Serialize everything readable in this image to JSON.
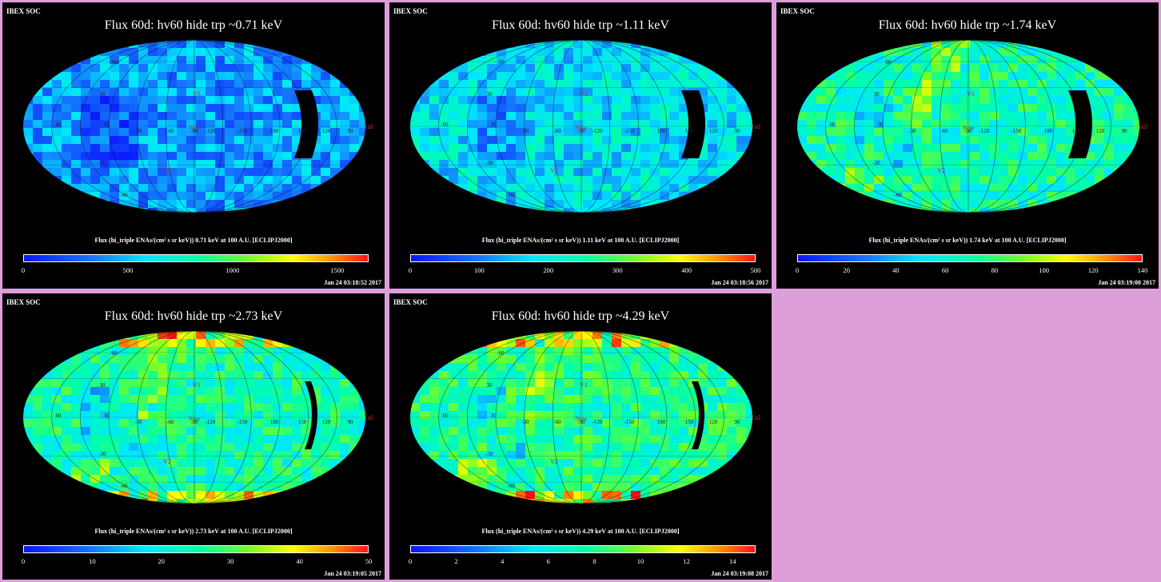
{
  "header_label": "IBEX SOC",
  "panels": [
    {
      "title": "Flux   60d: hv60 hide trp ~0.71 keV",
      "colorbar_label": "Flux (hi_triple ENAs/(cm² s sr keV))  0.71 keV at 100 A.U. [ECLIPJ2000]",
      "ticks": [
        "0",
        "500",
        "1000",
        "1500"
      ],
      "tick_values": [
        0,
        500,
        1000,
        1500
      ],
      "cmax": 1650,
      "timestamp": "Jan 24 03:18:52 2017",
      "mean_level": 0.25
    },
    {
      "title": "Flux   60d: hv60 hide trp ~1.11 keV",
      "colorbar_label": "Flux (hi_triple ENAs/(cm² s sr keV))  1.11 keV at 100 A.U. [ECLIPJ2000]",
      "ticks": [
        "0",
        "100",
        "200",
        "300",
        "400",
        "500"
      ],
      "tick_values": [
        0,
        100,
        200,
        300,
        400,
        500
      ],
      "cmax": 500,
      "timestamp": "Jan 24 03:18:56 2017",
      "mean_level": 0.36
    },
    {
      "title": "Flux   60d: hv60 hide trp ~1.74 keV",
      "colorbar_label": "Flux (hi_triple ENAs/(cm² s sr keV))  1.74 keV at 100 A.U. [ECLIPJ2000]",
      "ticks": [
        "0",
        "20",
        "40",
        "60",
        "80",
        "100",
        "120",
        "140"
      ],
      "tick_values": [
        0,
        20,
        40,
        60,
        80,
        100,
        120,
        140
      ],
      "cmax": 140,
      "timestamp": "Jan 24 03:19:00 2017",
      "mean_level": 0.48
    },
    {
      "title": "Flux   60d: hv60 hide trp ~2.73 keV",
      "colorbar_label": "Flux (hi_triple ENAs/(cm² s sr keV))  2.73 keV at 100 A.U. [ECLIPJ2000]",
      "ticks": [
        "0",
        "10",
        "20",
        "30",
        "40",
        "50"
      ],
      "tick_values": [
        0,
        10,
        20,
        30,
        40,
        50
      ],
      "cmax": 50,
      "timestamp": "Jan 24 03:19:05 2017",
      "mean_level": 0.48
    },
    {
      "title": "Flux   60d: hv60 hide trp ~4.29 keV",
      "colorbar_label": "Flux (hi_triple ENAs/(cm² s sr keV))  4.29 keV at 100 A.U. [ECLIPJ2000]",
      "ticks": [
        "0",
        "2",
        "4",
        "6",
        "8",
        "10",
        "12",
        "14"
      ],
      "tick_values": [
        0,
        2,
        4,
        6,
        8,
        10,
        12,
        14
      ],
      "cmax": 15,
      "timestamp": "Jan 24 03:19:08 2017",
      "mean_level": 0.52
    }
  ],
  "map_labels": {
    "v1": "V1",
    "v2": "V2",
    "nose": "Nose",
    "tail": "Tail",
    "lon_labels": [
      "60",
      "30",
      "-30",
      "-60",
      "-90",
      "-120",
      "-150",
      "180",
      "150",
      "120",
      "90"
    ],
    "lat_labels": [
      "60",
      "30",
      "-30",
      "-60"
    ]
  }
}
